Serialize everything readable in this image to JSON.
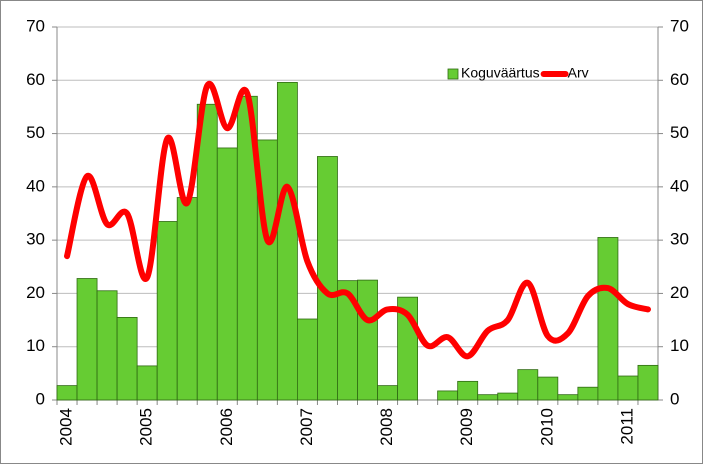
{
  "chart_data": {
    "type": "combo",
    "categories": [
      "2004",
      null,
      null,
      null,
      "2005",
      null,
      null,
      null,
      "2006",
      null,
      null,
      null,
      "2007",
      null,
      null,
      null,
      "2008",
      null,
      null,
      null,
      "2009",
      null,
      null,
      null,
      "2010",
      null,
      null,
      null,
      "2011",
      null
    ],
    "series": [
      {
        "name": "Koguväärtus",
        "type": "bar",
        "color": "#66cc33",
        "values": [
          2.7,
          22.8,
          20.5,
          15.5,
          6.4,
          33.5,
          38,
          55.5,
          47.3,
          57,
          48.8,
          59.6,
          15.2,
          45.7,
          22.4,
          22.5,
          2.7,
          19.3,
          0,
          1.7,
          3.5,
          1.0,
          1.3,
          5.7,
          4.3,
          1.0,
          2.4,
          30.5,
          4.5,
          6.5
        ]
      },
      {
        "name": "Arv",
        "type": "line",
        "axis": "y2",
        "color": "#ff0000",
        "values": [
          27,
          42,
          33,
          35,
          23,
          49,
          37,
          59,
          51,
          57.5,
          30,
          40,
          26,
          20,
          20,
          15,
          17,
          16,
          10.2,
          11.8,
          8.2,
          13,
          15,
          22,
          12,
          12.5,
          19.5,
          21,
          18,
          17
        ]
      }
    ],
    "ylim": [
      0,
      70
    ],
    "yticks": [
      0,
      10,
      20,
      30,
      40,
      50,
      60,
      70
    ],
    "y2lim": [
      0,
      70
    ],
    "y2ticks": [
      0,
      10,
      20,
      30,
      40,
      50,
      60,
      70
    ],
    "grid": true,
    "legend": "top-right"
  }
}
